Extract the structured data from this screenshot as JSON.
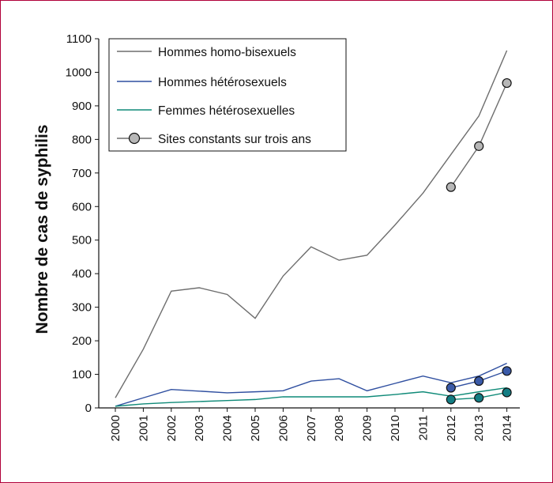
{
  "chart_data": {
    "type": "line",
    "ylabel": "Nombre de cas de syphilis",
    "xlabel": "",
    "ylim": [
      0,
      1100
    ],
    "yticks": [
      0,
      100,
      200,
      300,
      400,
      500,
      600,
      700,
      800,
      900,
      1000,
      1100
    ],
    "categories": [
      "2000",
      "2001",
      "2002",
      "2003",
      "2004",
      "2005",
      "2006",
      "2007",
      "2008",
      "2009",
      "2010",
      "2011",
      "2012",
      "2013",
      "2014"
    ],
    "series": [
      {
        "name": "Hommes homo-bisexuels",
        "color": "#6e6e6e",
        "values": [
          30,
          175,
          348,
          358,
          338,
          267,
          393,
          480,
          440,
          455,
          545,
          640,
          755,
          870,
          1065
        ]
      },
      {
        "name": "Hommes hétérosexuels",
        "color": "#2f4fa0",
        "values": [
          5,
          30,
          55,
          50,
          45,
          48,
          51,
          80,
          87,
          51,
          73,
          95,
          75,
          95,
          133
        ]
      },
      {
        "name": "Femmes hétérosexuelles",
        "color": "#0f8a78",
        "values": [
          5,
          12,
          16,
          19,
          22,
          25,
          33,
          33,
          33,
          33,
          40,
          48,
          35,
          48,
          60
        ]
      }
    ],
    "constant_sites": {
      "name": "Sites constants sur trois ans",
      "marker_color": "#b7b7b7",
      "categories": [
        "2012",
        "2013",
        "2014"
      ],
      "series": [
        {
          "values": [
            658,
            780,
            968
          ],
          "line_color": "#6e6e6e",
          "marker_color": "#b7b7b7"
        },
        {
          "values": [
            60,
            80,
            110
          ],
          "line_color": "#2f4fa0",
          "marker_color": "#3a5aa8"
        },
        {
          "values": [
            25,
            30,
            46
          ],
          "line_color": "#0f8a78",
          "marker_color": "#137d83"
        }
      ]
    },
    "grid": false,
    "legend_position": "top-left"
  }
}
